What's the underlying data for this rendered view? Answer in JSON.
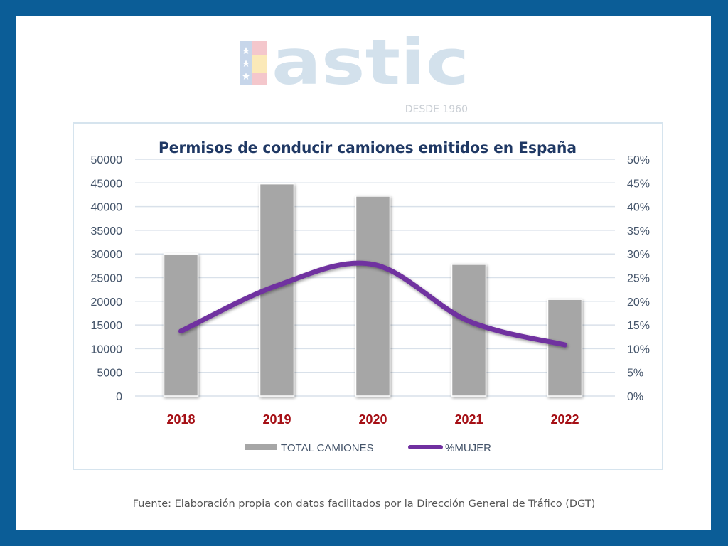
{
  "logo": {
    "text": "astic",
    "tagline": "DESDE 1960"
  },
  "colors": {
    "frame": "#0b5d97",
    "bar": "#a6a6a6",
    "line": "#7030a0",
    "title": "#1f3864",
    "year": "#a50f15",
    "axis": "#44546a"
  },
  "chart_data": {
    "type": "bar+line",
    "title": "Permisos de conducir camiones emitidos en España",
    "categories": [
      "2018",
      "2019",
      "2020",
      "2021",
      "2022"
    ],
    "series": [
      {
        "name": "TOTAL CAMIONES",
        "type": "bar",
        "axis": "left",
        "values": [
          30000,
          44800,
          42200,
          27800,
          20400
        ]
      },
      {
        "name": "%MUJER",
        "type": "line",
        "axis": "right",
        "values": [
          13.7,
          23.3,
          27.8,
          15.8,
          10.8
        ]
      }
    ],
    "y_left": {
      "min": 0,
      "max": 50000,
      "step": 5000,
      "ticks": [
        "0",
        "5000",
        "10000",
        "15000",
        "20000",
        "25000",
        "30000",
        "35000",
        "40000",
        "45000",
        "50000"
      ]
    },
    "y_right": {
      "min": 0,
      "max": 50,
      "step": 5,
      "ticks": [
        "0%",
        "5%",
        "10%",
        "15%",
        "20%",
        "25%",
        "30%",
        "35%",
        "40%",
        "45%",
        "50%"
      ]
    },
    "grid": true,
    "legend_position": "bottom"
  },
  "footer": {
    "source_label": "Fuente:",
    "source_text": " Elaboración propia con datos facilitados por la Dirección General de Tráfico (DGT)"
  }
}
